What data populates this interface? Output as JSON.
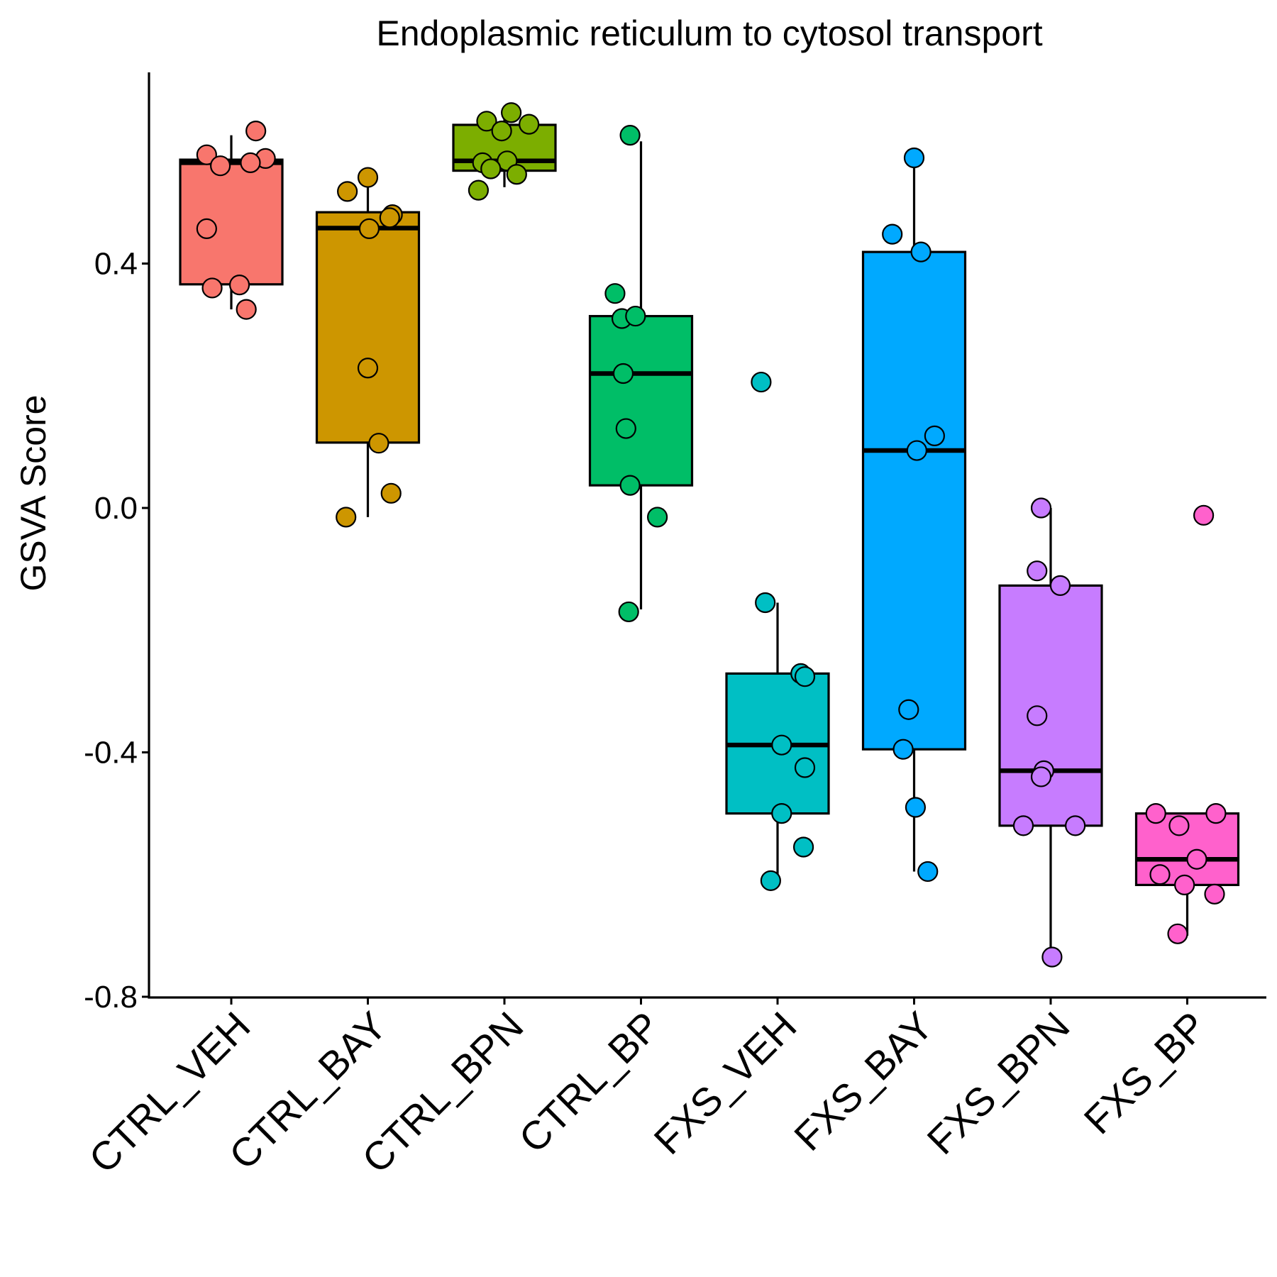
{
  "chart_data": {
    "type": "box",
    "title": "Endoplasmic reticulum to cytosol transport",
    "xlabel": "",
    "ylabel": "GSVA Score",
    "ylim": [
      -0.8,
      0.72
    ],
    "yticks": [
      0.4,
      0.0,
      -0.4,
      -0.8
    ],
    "ytick_labels": [
      "0.4",
      "0.0",
      "-0.4",
      "-0.8"
    ],
    "grid": false,
    "legend": "none",
    "categories": [
      "CTRL_VEH",
      "CTRL_BAY",
      "CTRL_BPN",
      "CTRL_BP",
      "FXS_VEH",
      "FXS_BAY",
      "FXS_BPN",
      "FXS_BP"
    ],
    "series": [
      {
        "category": "CTRL_VEH",
        "color": "#F8766D",
        "box": {
          "q1": 0.366,
          "median": 0.565,
          "q3": 0.57,
          "whisker_low": 0.325,
          "whisker_high": 0.61
        },
        "points": [
          {
            "dx": 0.18,
            "y": 0.617
          },
          {
            "dx": -0.18,
            "y": 0.578
          },
          {
            "dx": 0.25,
            "y": 0.572
          },
          {
            "dx": 0.14,
            "y": 0.565
          },
          {
            "dx": -0.08,
            "y": 0.56
          },
          {
            "dx": -0.18,
            "y": 0.457
          },
          {
            "dx": 0.06,
            "y": 0.365
          },
          {
            "dx": -0.14,
            "y": 0.36
          },
          {
            "dx": 0.11,
            "y": 0.325
          }
        ]
      },
      {
        "category": "CTRL_BAY",
        "color": "#CD9600",
        "box": {
          "q1": 0.107,
          "median": 0.458,
          "q3": 0.484,
          "whisker_low": -0.015,
          "whisker_high": 0.541
        },
        "points": [
          {
            "dx": 0.0,
            "y": 0.541
          },
          {
            "dx": -0.15,
            "y": 0.518
          },
          {
            "dx": 0.18,
            "y": 0.48
          },
          {
            "dx": 0.16,
            "y": 0.475
          },
          {
            "dx": 0.01,
            "y": 0.457
          },
          {
            "dx": 0.0,
            "y": 0.229
          },
          {
            "dx": 0.08,
            "y": 0.106
          },
          {
            "dx": 0.17,
            "y": 0.024
          },
          {
            "dx": -0.16,
            "y": -0.015
          }
        ]
      },
      {
        "category": "CTRL_BPN",
        "color": "#7CAE00",
        "box": {
          "q1": 0.552,
          "median": 0.568,
          "q3": 0.627,
          "whisker_low": 0.525,
          "whisker_high": 0.647
        },
        "points": [
          {
            "dx": 0.05,
            "y": 0.647
          },
          {
            "dx": -0.13,
            "y": 0.633
          },
          {
            "dx": 0.18,
            "y": 0.628
          },
          {
            "dx": -0.02,
            "y": 0.617
          },
          {
            "dx": 0.02,
            "y": 0.568
          },
          {
            "dx": -0.16,
            "y": 0.565
          },
          {
            "dx": -0.1,
            "y": 0.555
          },
          {
            "dx": 0.09,
            "y": 0.546
          },
          {
            "dx": -0.19,
            "y": 0.52
          }
        ]
      },
      {
        "category": "CTRL_BP",
        "color": "#00BE67",
        "box": {
          "q1": 0.037,
          "median": 0.22,
          "q3": 0.314,
          "whisker_low": -0.166,
          "whisker_high": 0.6
        },
        "points": [
          {
            "dx": -0.08,
            "y": 0.61
          },
          {
            "dx": -0.19,
            "y": 0.351
          },
          {
            "dx": -0.14,
            "y": 0.31
          },
          {
            "dx": -0.04,
            "y": 0.314
          },
          {
            "dx": -0.13,
            "y": 0.22
          },
          {
            "dx": -0.11,
            "y": 0.13
          },
          {
            "dx": -0.08,
            "y": 0.037
          },
          {
            "dx": 0.12,
            "y": -0.015
          },
          {
            "dx": -0.09,
            "y": -0.17
          }
        ]
      },
      {
        "category": "FXS_VEH",
        "color": "#00BFC4",
        "box": {
          "q1": -0.5,
          "median": -0.388,
          "q3": -0.271,
          "whisker_low": -0.61,
          "whisker_high": -0.155
        },
        "points": [
          {
            "dx": -0.12,
            "y": 0.206
          },
          {
            "dx": -0.09,
            "y": -0.155
          },
          {
            "dx": 0.17,
            "y": -0.271
          },
          {
            "dx": 0.2,
            "y": -0.276
          },
          {
            "dx": 0.03,
            "y": -0.388
          },
          {
            "dx": 0.2,
            "y": -0.425
          },
          {
            "dx": 0.03,
            "y": -0.5
          },
          {
            "dx": 0.19,
            "y": -0.555
          },
          {
            "dx": -0.05,
            "y": -0.61
          }
        ]
      },
      {
        "category": "FXS_BAY",
        "color": "#00A9FF",
        "box": {
          "q1": -0.395,
          "median": 0.094,
          "q3": 0.419,
          "whisker_low": -0.595,
          "whisker_high": 0.568
        },
        "points": [
          {
            "dx": 0.0,
            "y": 0.573
          },
          {
            "dx": -0.16,
            "y": 0.448
          },
          {
            "dx": 0.05,
            "y": 0.419
          },
          {
            "dx": 0.15,
            "y": 0.118
          },
          {
            "dx": 0.02,
            "y": 0.094
          },
          {
            "dx": -0.04,
            "y": -0.33
          },
          {
            "dx": -0.08,
            "y": -0.395
          },
          {
            "dx": 0.01,
            "y": -0.49
          },
          {
            "dx": 0.1,
            "y": -0.595
          }
        ]
      },
      {
        "category": "FXS_BPN",
        "color": "#C77CFF",
        "box": {
          "q1": -0.52,
          "median": -0.43,
          "q3": -0.127,
          "whisker_low": -0.735,
          "whisker_high": 0.0
        },
        "points": [
          {
            "dx": -0.07,
            "y": 0.0
          },
          {
            "dx": -0.1,
            "y": -0.103
          },
          {
            "dx": 0.07,
            "y": -0.127
          },
          {
            "dx": -0.1,
            "y": -0.34
          },
          {
            "dx": -0.05,
            "y": -0.43
          },
          {
            "dx": -0.07,
            "y": -0.44
          },
          {
            "dx": -0.2,
            "y": -0.52
          },
          {
            "dx": 0.18,
            "y": -0.52
          },
          {
            "dx": 0.01,
            "y": -0.735
          }
        ]
      },
      {
        "category": "FXS_BP",
        "color": "#FF61CC",
        "box": {
          "q1": -0.617,
          "median": -0.575,
          "q3": -0.5,
          "whisker_low": -0.7,
          "whisker_high": -0.5
        },
        "points": [
          {
            "dx": 0.12,
            "y": -0.012
          },
          {
            "dx": -0.23,
            "y": -0.5
          },
          {
            "dx": 0.21,
            "y": -0.5
          },
          {
            "dx": -0.06,
            "y": -0.52
          },
          {
            "dx": 0.07,
            "y": -0.575
          },
          {
            "dx": -0.2,
            "y": -0.6
          },
          {
            "dx": -0.02,
            "y": -0.617
          },
          {
            "dx": 0.2,
            "y": -0.632
          },
          {
            "dx": -0.07,
            "y": -0.697
          }
        ]
      }
    ]
  }
}
